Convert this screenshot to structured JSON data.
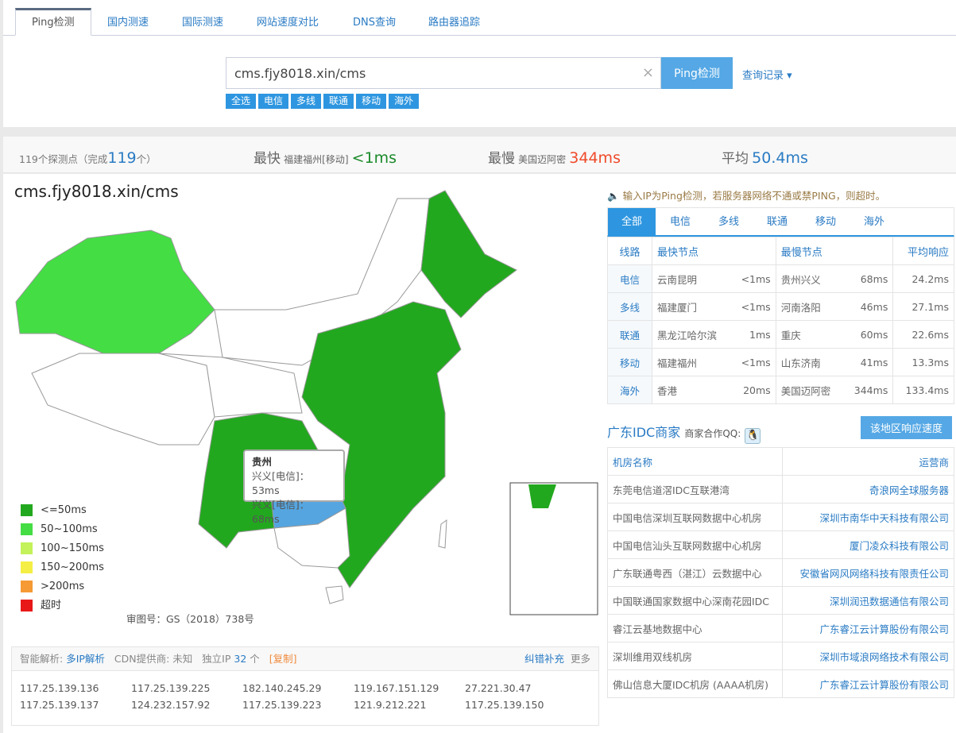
{
  "tabs": [
    "Ping检测",
    "国内测速",
    "国际测速",
    "网站速度对比",
    "DNS查询",
    "路由器追踪"
  ],
  "search": {
    "value": "cms.fjy8018.xin/cms",
    "button": "Ping检测",
    "history": "查询记录 ▾",
    "clear_icon": "×"
  },
  "filters": [
    "全选",
    "电信",
    "多线",
    "联通",
    "移动",
    "海外"
  ],
  "stats": {
    "points": "119个探测点（完成",
    "done": "119",
    "unit": "个）",
    "fast_label": "最快",
    "fast_node": "福建福州[移动]",
    "fast_val": "<1ms",
    "slow_label": "最慢",
    "slow_node": "美国迈阿密",
    "slow_val": "344ms",
    "avg_label": "平均",
    "avg_val": "50.4ms"
  },
  "colors": {
    "accent": "#2e96e0",
    "fast": "#1a8a2a",
    "slow": "#f04a2a",
    "avg": "#2a7bc4"
  },
  "map": {
    "title": "cms.fjy8018.xin/cms",
    "tooltip": {
      "province": "贵州",
      "lines": [
        "兴义[电信]：53ms",
        "兴义[电信]：68ms"
      ]
    },
    "gs": "审图号：GS（2018）738号",
    "legend": [
      {
        "label": "<=50ms",
        "color": "#22a81e"
      },
      {
        "label": "50~100ms",
        "color": "#44dd44"
      },
      {
        "label": "100~150ms",
        "color": "#c3f25a"
      },
      {
        "label": "150~200ms",
        "color": "#f5ee44"
      },
      {
        "label": ">200ms",
        "color": "#f59a35"
      },
      {
        "label": "超时",
        "color": "#e81818"
      }
    ]
  },
  "dns": {
    "smart": "智能解析:",
    "multi": "多IP解析",
    "cdn": "CDN提供商: 未知",
    "ipcount_label": "独立IP",
    "ipcount": "32",
    "ipcount_unit": "个",
    "copy": "[复制]",
    "report": "纠错补充",
    "more": "更多",
    "ips": [
      "117.25.139.136",
      "117.25.139.225",
      "182.140.245.29",
      "119.167.151.129",
      "27.221.30.47",
      "117.25.139.137",
      "124.232.157.92",
      "117.25.139.223",
      "121.9.212.221",
      "117.25.139.150"
    ]
  },
  "notice": "输入IP为Ping检测，若服务器网络不通或禁PING，则超时。",
  "line_tabs": [
    "全部",
    "电信",
    "多线",
    "联通",
    "移动",
    "海外"
  ],
  "line_table": {
    "headers": [
      "线路",
      "最快节点",
      "最慢节点",
      "平均响应"
    ],
    "rows": [
      {
        "line": "电信",
        "fast": "云南昆明",
        "fast_ms": "<1ms",
        "slow": "贵州兴义",
        "slow_ms": "68ms",
        "avg": "24.2ms"
      },
      {
        "line": "多线",
        "fast": "福建厦门",
        "fast_ms": "<1ms",
        "slow": "河南洛阳",
        "slow_ms": "46ms",
        "avg": "27.1ms"
      },
      {
        "line": "联通",
        "fast": "黑龙江哈尔滨",
        "fast_ms": "1ms",
        "slow": "重庆",
        "slow_ms": "60ms",
        "avg": "22.6ms"
      },
      {
        "line": "移动",
        "fast": "福建福州",
        "fast_ms": "<1ms",
        "slow": "山东济南",
        "slow_ms": "41ms",
        "avg": "13.3ms"
      },
      {
        "line": "海外",
        "fast": "香港",
        "fast_ms": "20ms",
        "slow": "美国迈阿密",
        "slow_ms": "344ms",
        "avg": "133.4ms"
      }
    ]
  },
  "idc": {
    "title": "广东IDC商家",
    "qq_label": "商家合作QQ:",
    "area_button": "该地区响应速度",
    "headers": [
      "机房名称",
      "运营商"
    ],
    "rows": [
      [
        "东莞电信道滘IDC互联港湾",
        "奇浪网全球服务器"
      ],
      [
        "中国电信深圳互联网数据中心机房",
        "深圳市南华中天科技有限公司"
      ],
      [
        "中国电信汕头互联网数据中心机房",
        "厦门凌众科技有限公司"
      ],
      [
        "广东联通粤西（湛江）云数据中心",
        "安徽省网风网络科技有限责任公司"
      ],
      [
        "中国联通国家数据中心深南花园IDC",
        "深圳润迅数据通信有限公司"
      ],
      [
        "睿江云基地数据中心",
        "广东睿江云计算股份有限公司"
      ],
      [
        "深圳维用双线机房",
        "深圳市域浪网络技术有限公司"
      ],
      [
        "佛山信息大厦IDC机房 (AAAA机房)",
        "广东睿江云计算股份有限公司"
      ]
    ]
  }
}
